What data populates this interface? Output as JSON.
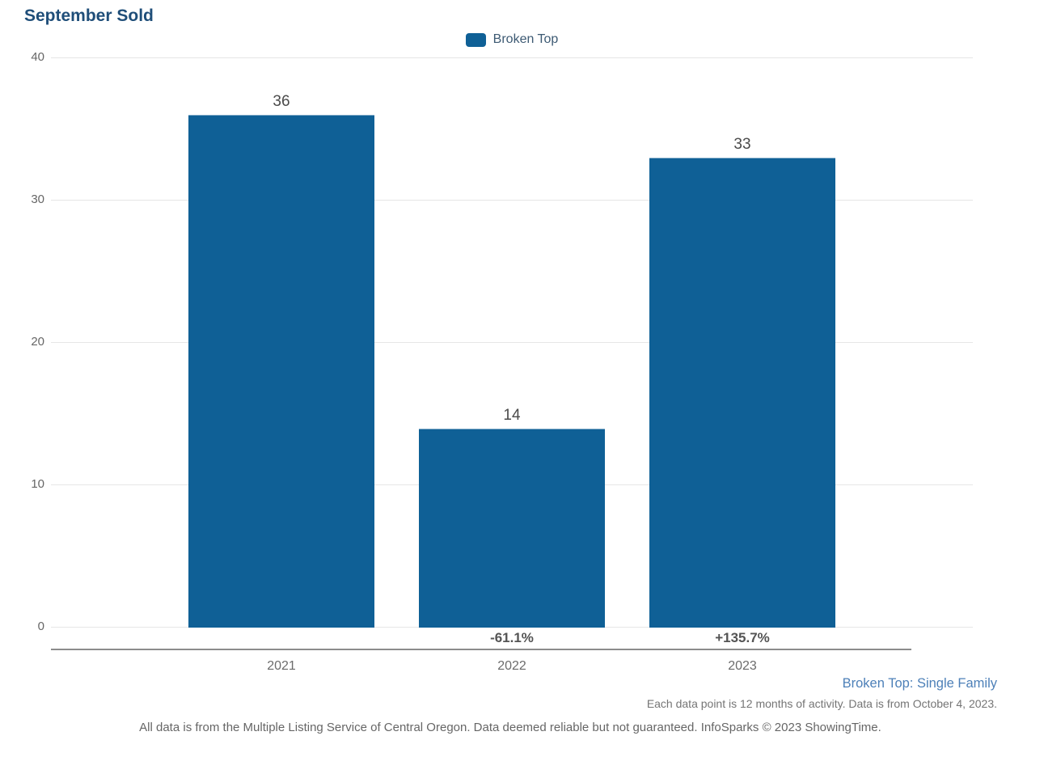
{
  "chart_data": {
    "type": "bar",
    "title": "September Sold",
    "xlabel": "",
    "ylabel": "",
    "categories": [
      "2021",
      "2022",
      "2023"
    ],
    "series": [
      {
        "name": "Broken Top",
        "values": [
          36,
          14,
          33
        ],
        "color": "#0f6096"
      }
    ],
    "data_labels": [
      "36",
      "14",
      "33"
    ],
    "change_labels": [
      "",
      "-61.1%",
      "+135.7%"
    ],
    "ylim": [
      0,
      40
    ],
    "y_ticks": [
      0,
      10,
      20,
      30,
      40
    ],
    "grid": true,
    "legend_position": "top-center"
  },
  "footer": {
    "series_note": "Broken Top: Single Family",
    "data_note": "Each data point is 12 months of activity. Data is from October 4, 2023.",
    "disclaimer": "All data is from the Multiple Listing Service of Central Oregon. Data deemed reliable but not guaranteed. InfoSparks © 2023 ShowingTime."
  },
  "colors": {
    "bar": "#0f6096",
    "title": "#1f4e79",
    "legend_text": "#3d5a73",
    "series_note_text": "#4d80b8",
    "gridline": "#e6e6e6",
    "axis_line": "#8c8c8c"
  }
}
